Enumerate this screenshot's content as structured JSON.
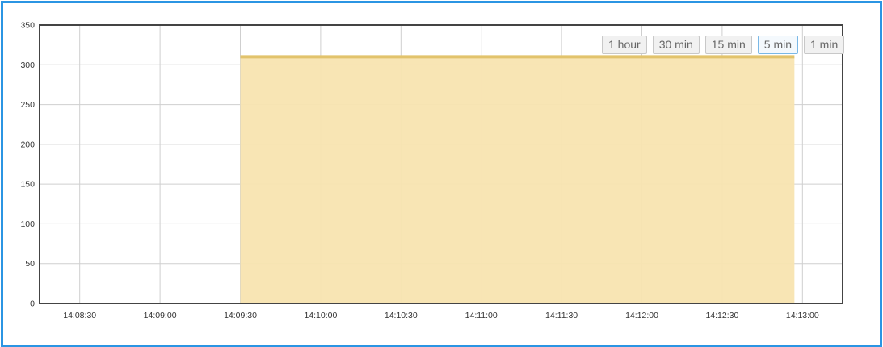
{
  "colors": {
    "border": "#2b95e3",
    "area_fill": "#f8e4b0",
    "area_line": "#e2c36c",
    "grid": "#cfcfcf",
    "plot_border": "#444444"
  },
  "range_buttons": [
    {
      "label": "1 hour",
      "active": false
    },
    {
      "label": "30 min",
      "active": false
    },
    {
      "label": "15 min",
      "active": false
    },
    {
      "label": "5 min",
      "active": true
    },
    {
      "label": "1 min",
      "active": false
    }
  ],
  "chart_data": {
    "type": "area",
    "title": "",
    "xlabel": "",
    "ylabel": "",
    "ylim": [
      0,
      350
    ],
    "xlim": [
      "14:08:15",
      "14:13:15"
    ],
    "yticks": [
      0,
      50,
      100,
      150,
      200,
      250,
      300,
      350
    ],
    "xticks": [
      "14:08:30",
      "14:09:00",
      "14:09:30",
      "14:10:00",
      "14:10:30",
      "14:11:00",
      "14:11:30",
      "14:12:00",
      "14:12:30",
      "14:13:00"
    ],
    "grid": true,
    "series": [
      {
        "x": [
          "14:09:30",
          "14:12:57"
        ],
        "y": [
          310,
          310
        ]
      }
    ]
  }
}
